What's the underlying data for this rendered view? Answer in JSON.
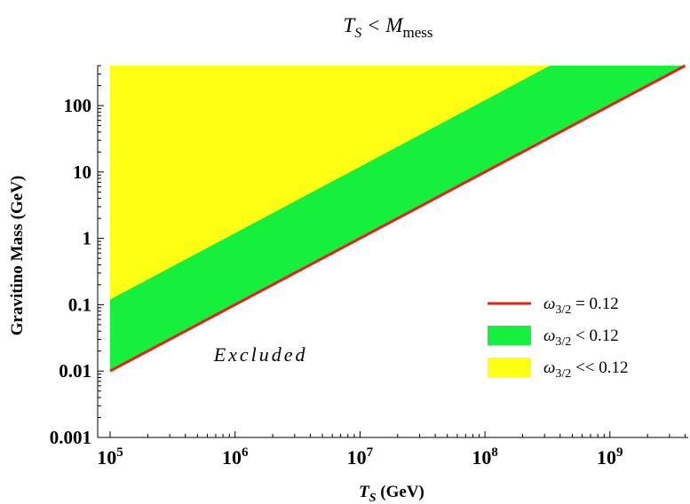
{
  "chart_data": {
    "type": "area",
    "title": {
      "main": "T",
      "main_sub": "S",
      "mid": " < M",
      "tail_sub": "mess"
    },
    "xlabel": {
      "main": "T",
      "sub": "S",
      "rest": " (GeV)"
    },
    "ylabel": "Gravitino Mass (GeV)",
    "xscale": "log",
    "yscale": "log",
    "xlim": [
      100000,
      4000000000
    ],
    "ylim": [
      0.001,
      400
    ],
    "x_ticks": [
      {
        "value": 100000,
        "base": "10",
        "exp": "5"
      },
      {
        "value": 1000000,
        "base": "10",
        "exp": "6"
      },
      {
        "value": 10000000,
        "base": "10",
        "exp": "7"
      },
      {
        "value": 100000000,
        "base": "10",
        "exp": "8"
      },
      {
        "value": 1000000000,
        "base": "10",
        "exp": "9"
      }
    ],
    "y_ticks": [
      {
        "value": 0.001,
        "label": "0.001"
      },
      {
        "value": 0.01,
        "label": "0.01"
      },
      {
        "value": 0.1,
        "label": "0.1"
      },
      {
        "value": 1,
        "label": "1"
      },
      {
        "value": 10,
        "label": "10"
      },
      {
        "value": 100,
        "label": "100"
      }
    ],
    "grid": false,
    "legend_position": "bottom-right",
    "series": [
      {
        "name": {
          "main": "ω",
          "sub": "3/2",
          "rest": " = 0.12"
        },
        "kind": "line",
        "color": "#ee1c1c",
        "points": [
          [
            100000,
            0.01
          ],
          [
            4000000000,
            400
          ]
        ]
      },
      {
        "name": {
          "main": "ω",
          "sub": "3/2",
          "rest": " < 0.12"
        },
        "kind": "band",
        "color": "#14f03c",
        "lower": [
          [
            100000,
            0.01
          ],
          [
            4000000000,
            400
          ]
        ],
        "upper": [
          [
            100000,
            0.12
          ],
          [
            330000000,
            400
          ]
        ]
      },
      {
        "name": {
          "main": "ω",
          "sub": "3/2",
          "rest": " << 0.12"
        },
        "kind": "band",
        "color": "#ffff14",
        "lower": [
          [
            100000,
            0.12
          ],
          [
            330000000,
            400
          ]
        ],
        "upper": [
          [
            100000,
            400
          ],
          [
            4000000000,
            400
          ]
        ]
      }
    ],
    "annotations": [
      {
        "text": "Excluded",
        "x": 2500000,
        "y": 0.018
      }
    ]
  }
}
